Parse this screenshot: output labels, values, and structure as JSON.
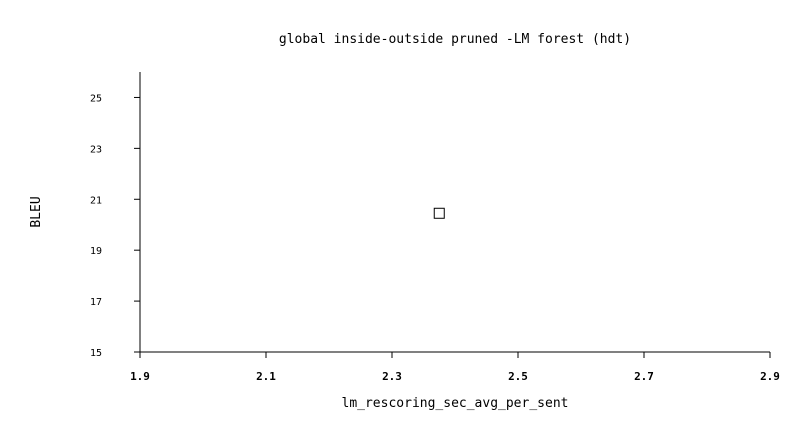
{
  "chart_data": {
    "type": "scatter",
    "title": "global inside-outside pruned -LM forest (hdt)",
    "xlabel": "lm_rescoring_sec_avg_per_sent",
    "ylabel": "BLEU",
    "xlim": [
      1.9,
      2.9
    ],
    "ylim": [
      15,
      26
    ],
    "xticks": [
      "1.9",
      "2.1",
      "2.3",
      "2.5",
      "2.7",
      "2.9"
    ],
    "yticks": [
      "15",
      "17",
      "19",
      "21",
      "23",
      "25"
    ],
    "marker": "open-square",
    "grid": false,
    "points": [
      {
        "x": 2.375,
        "y": 20.45
      }
    ]
  }
}
